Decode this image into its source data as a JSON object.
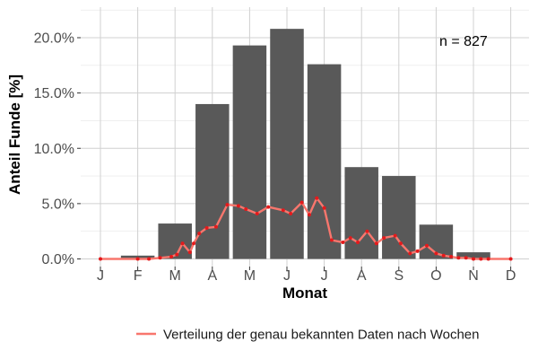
{
  "chart_data": {
    "type": "bar",
    "xlabel": "Monat",
    "ylabel": "Anteil Funde [%]",
    "categories": [
      "J",
      "F",
      "M",
      "A",
      "M",
      "J",
      "J",
      "A",
      "S",
      "O",
      "N",
      "D"
    ],
    "values": [
      0.0,
      0.3,
      3.2,
      14.0,
      19.3,
      20.8,
      17.6,
      8.3,
      7.5,
      3.1,
      0.6,
      0.0
    ],
    "ylim": [
      0,
      22.8
    ],
    "yticks": [
      0,
      5,
      10,
      15,
      20
    ],
    "ytick_labels": [
      "0.0%",
      "5.0%",
      "10.0%",
      "15.0%",
      "20.0%"
    ],
    "grid": true,
    "bar_color": "#595959",
    "annotation": "n = 827",
    "weekly_line": {
      "name": "Verteilung der genau bekannten Daten nach Wochen",
      "color": "#f8766d",
      "point_color": "#e41a1c",
      "x_month": [
        0.0,
        1.0,
        1.3,
        1.6,
        1.9,
        2.05,
        2.2,
        2.4,
        2.5,
        2.65,
        2.85,
        3.1,
        3.4,
        3.7,
        3.9,
        4.2,
        4.5,
        4.9,
        5.1,
        5.4,
        5.6,
        5.8,
        6.0,
        6.2,
        6.5,
        6.7,
        6.9,
        7.15,
        7.4,
        7.6,
        7.9,
        8.05,
        8.3,
        8.5,
        8.75,
        9.0,
        9.2,
        9.4,
        9.6,
        9.8,
        10.0,
        10.2,
        10.4,
        11.0
      ],
      "values": [
        0.0,
        0.0,
        0.0,
        0.1,
        0.2,
        0.4,
        1.4,
        0.6,
        1.4,
        2.3,
        2.8,
        2.9,
        4.9,
        4.8,
        4.5,
        4.1,
        4.7,
        4.4,
        4.1,
        5.1,
        4.0,
        5.5,
        4.6,
        1.7,
        1.5,
        1.9,
        1.5,
        2.5,
        1.4,
        1.9,
        2.1,
        1.4,
        0.5,
        0.7,
        1.2,
        0.5,
        0.3,
        0.2,
        0.1,
        0.1,
        0.0,
        0.0,
        0.0,
        0.0
      ]
    }
  }
}
